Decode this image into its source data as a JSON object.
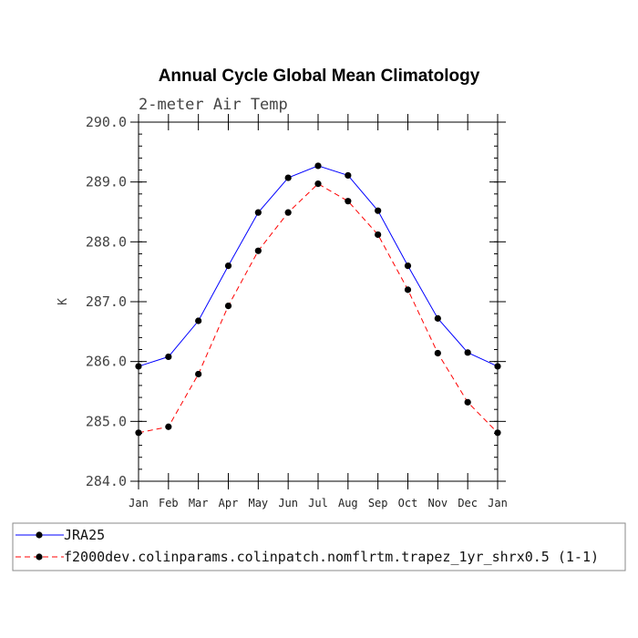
{
  "chart_data": {
    "type": "line",
    "title": "Annual Cycle Global Mean Climatology",
    "subtitle": "2-meter Air Temp",
    "ylabel": "K",
    "xlabel": "",
    "ylim": [
      284.0,
      290.0
    ],
    "yticks": [
      "284.0",
      "285.0",
      "286.0",
      "287.0",
      "288.0",
      "289.0",
      "290.0"
    ],
    "categories": [
      "Jan",
      "Feb",
      "Mar",
      "Apr",
      "May",
      "Jun",
      "Jul",
      "Aug",
      "Sep",
      "Oct",
      "Nov",
      "Dec",
      "Jan"
    ],
    "series": [
      {
        "name": "JRA25",
        "color": "#0000ff",
        "dash": "solid",
        "values": [
          285.92,
          286.08,
          286.68,
          287.6,
          288.49,
          289.07,
          289.27,
          289.11,
          288.52,
          287.6,
          286.72,
          286.15,
          285.92
        ]
      },
      {
        "name": "f2000dev.colinparams.colinpatch.nomflrtm.trapez_1yr_shrx0.5 (1-1)",
        "color": "#ff0000",
        "dash": "dashed",
        "values": [
          284.81,
          284.91,
          285.79,
          286.93,
          287.85,
          288.49,
          288.97,
          288.68,
          288.12,
          287.2,
          286.14,
          285.32,
          284.81
        ]
      }
    ]
  }
}
